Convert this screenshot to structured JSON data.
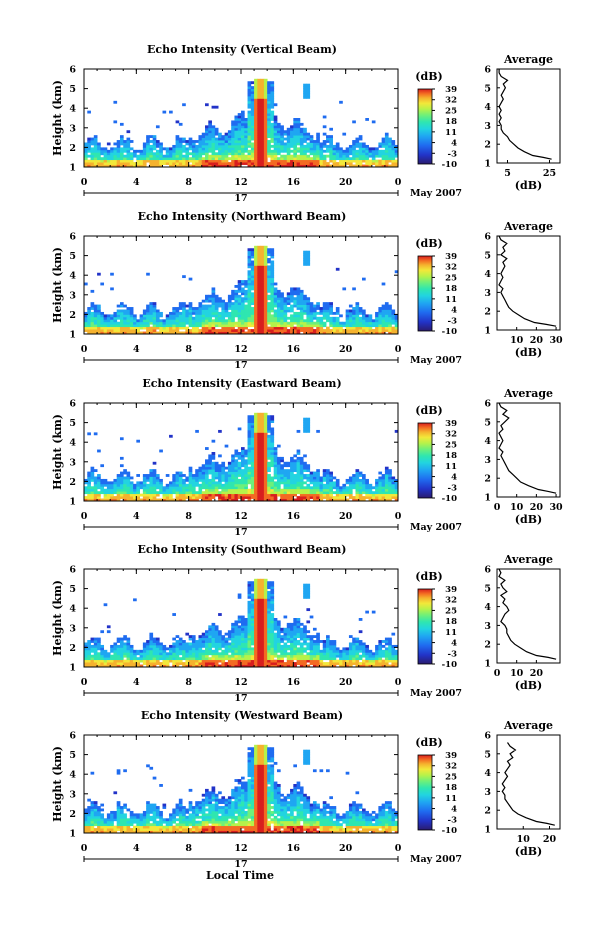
{
  "figure": {
    "xlabel": "Local Time",
    "day_label": "17",
    "month_label": "May 2007",
    "colorbar_unit": "(dB)",
    "average_title": "Average",
    "average_xlabel": "(dB)"
  },
  "chart_data": [
    {
      "type": "heatmap",
      "title": "Echo Intensity (Vertical Beam)",
      "ylabel": "Height (km)",
      "x_ticks": [
        "0",
        "4",
        "8",
        "12",
        "16",
        "20",
        "0"
      ],
      "y_ticks": [
        "1",
        "2",
        "3",
        "4",
        "5",
        "6"
      ],
      "xlim": [
        0,
        24
      ],
      "ylim": [
        1,
        6
      ],
      "colorbar_ticks": [
        "39",
        "32",
        "25",
        "18",
        "11",
        "4",
        "-3",
        "-10"
      ],
      "colorbar_range": [
        -10,
        39
      ],
      "profile": {
        "x_ticks": [
          "5",
          "25"
        ],
        "xlim": [
          0,
          30
        ],
        "heights": [
          1.2,
          1.3,
          1.4,
          1.6,
          1.8,
          2.0,
          2.2,
          2.4,
          2.6,
          2.8,
          3.0,
          3.2,
          3.4,
          3.6,
          3.8,
          4.0,
          4.2,
          4.4,
          4.6,
          4.8,
          5.0,
          5.2,
          5.4,
          5.6,
          5.8,
          6.0
        ],
        "values": [
          26,
          22,
          17,
          13,
          10,
          8,
          6,
          5,
          3,
          2,
          2,
          1,
          2,
          1,
          2,
          1,
          2,
          3,
          2,
          3,
          4,
          3,
          5,
          2,
          1,
          1
        ]
      }
    },
    {
      "type": "heatmap",
      "title": "Echo Intensity (Northward Beam)",
      "ylabel": "Height (km)",
      "x_ticks": [
        "0",
        "4",
        "8",
        "12",
        "16",
        "20",
        "0"
      ],
      "y_ticks": [
        "1",
        "2",
        "3",
        "4",
        "5",
        "6"
      ],
      "xlim": [
        0,
        24
      ],
      "ylim": [
        1,
        6
      ],
      "colorbar_ticks": [
        "39",
        "32",
        "25",
        "18",
        "11",
        "4",
        "-3",
        "-10"
      ],
      "colorbar_range": [
        -10,
        39
      ],
      "profile": {
        "x_ticks": [
          "10",
          "20",
          "30"
        ],
        "xlim": [
          0,
          32
        ],
        "heights": [
          1.2,
          1.3,
          1.4,
          1.6,
          1.8,
          2.0,
          2.2,
          2.4,
          2.6,
          2.8,
          3.0,
          3.2,
          3.4,
          3.6,
          3.8,
          4.0,
          4.2,
          4.4,
          4.6,
          4.8,
          5.0,
          5.2,
          5.4,
          5.6,
          5.8,
          6.0
        ],
        "values": [
          30,
          25,
          19,
          14,
          11,
          8,
          6,
          5,
          4,
          3,
          2,
          3,
          1,
          2,
          3,
          2,
          3,
          4,
          3,
          5,
          2,
          4,
          3,
          5,
          2,
          1
        ]
      }
    },
    {
      "type": "heatmap",
      "title": "Echo Intensity (Eastward Beam)",
      "ylabel": "Height (km)",
      "x_ticks": [
        "0",
        "4",
        "8",
        "12",
        "16",
        "20",
        "0"
      ],
      "y_ticks": [
        "1",
        "2",
        "3",
        "4",
        "5",
        "6"
      ],
      "xlim": [
        0,
        24
      ],
      "ylim": [
        1,
        6
      ],
      "colorbar_ticks": [
        "39",
        "32",
        "25",
        "18",
        "11",
        "4",
        "-3",
        "-10"
      ],
      "colorbar_range": [
        -10,
        39
      ],
      "profile": {
        "x_ticks": [
          "0",
          "10",
          "20",
          "30"
        ],
        "xlim": [
          0,
          32
        ],
        "heights": [
          1.2,
          1.3,
          1.4,
          1.6,
          1.8,
          2.0,
          2.2,
          2.4,
          2.6,
          2.8,
          3.0,
          3.2,
          3.4,
          3.6,
          3.8,
          4.0,
          4.2,
          4.4,
          4.6,
          4.8,
          5.0,
          5.2,
          5.4,
          5.6,
          5.8,
          6.0
        ],
        "values": [
          30,
          26,
          21,
          16,
          12,
          10,
          8,
          6,
          5,
          4,
          3,
          2,
          3,
          1,
          2,
          3,
          2,
          1,
          3,
          2,
          4,
          6,
          3,
          5,
          2,
          1
        ]
      }
    },
    {
      "type": "heatmap",
      "title": "Echo Intensity (Southward Beam)",
      "ylabel": "Height (km)",
      "x_ticks": [
        "0",
        "4",
        "8",
        "12",
        "16",
        "20",
        "0"
      ],
      "y_ticks": [
        "1",
        "2",
        "3",
        "4",
        "5",
        "6"
      ],
      "xlim": [
        0,
        24
      ],
      "ylim": [
        1,
        6
      ],
      "colorbar_ticks": [
        "39",
        "32",
        "25",
        "18",
        "11",
        "4",
        "-3",
        "-10"
      ],
      "colorbar_range": [
        -10,
        39
      ],
      "profile": {
        "x_ticks": [
          "0",
          "10",
          "20"
        ],
        "xlim": [
          0,
          32
        ],
        "heights": [
          1.2,
          1.3,
          1.4,
          1.6,
          1.8,
          2.0,
          2.2,
          2.4,
          2.6,
          2.8,
          3.0,
          3.2,
          3.4,
          3.6,
          3.8,
          4.0,
          4.2,
          4.4,
          4.6,
          4.8,
          5.0,
          5.2,
          5.4,
          5.6,
          5.8,
          6.0
        ],
        "values": [
          30,
          26,
          20,
          15,
          12,
          9,
          7,
          6,
          5,
          5,
          4,
          2,
          3,
          4,
          6,
          5,
          3,
          4,
          2,
          5,
          3,
          2,
          4,
          1,
          2,
          1
        ]
      }
    },
    {
      "type": "heatmap",
      "title": "Echo Intensity (Westward Beam)",
      "ylabel": "Height (km)",
      "x_ticks": [
        "0",
        "4",
        "8",
        "12",
        "16",
        "20",
        "0"
      ],
      "y_ticks": [
        "1",
        "2",
        "3",
        "4",
        "5",
        "6"
      ],
      "xlim": [
        0,
        24
      ],
      "ylim": [
        1,
        6
      ],
      "colorbar_ticks": [
        "39",
        "32",
        "25",
        "18",
        "11",
        "4",
        "-3",
        "-10"
      ],
      "colorbar_range": [
        -10,
        39
      ],
      "profile": {
        "x_ticks": [
          "10",
          "20"
        ],
        "xlim": [
          0,
          24
        ],
        "heights": [
          1.2,
          1.3,
          1.4,
          1.6,
          1.8,
          2.0,
          2.2,
          2.4,
          2.6,
          2.8,
          3.0,
          3.2,
          3.4,
          3.6,
          3.8,
          4.0,
          4.2,
          4.4,
          4.6,
          4.8,
          5.0,
          5.2,
          5.4,
          5.6
        ],
        "values": [
          22,
          19,
          15,
          11,
          8,
          6,
          5,
          4,
          3,
          3,
          2,
          3,
          2,
          3,
          4,
          3,
          4,
          5,
          4,
          6,
          5,
          7,
          5,
          4
        ]
      }
    }
  ],
  "colors": {
    "scale": [
      "#2a1b6e",
      "#2233c8",
      "#1f6cf0",
      "#1fa6f2",
      "#22d4e0",
      "#2fe6b0",
      "#6ef07a",
      "#b6f24a",
      "#f2e83a",
      "#f5b22e",
      "#f36a22",
      "#d81e1e"
    ],
    "line": "#000000"
  }
}
